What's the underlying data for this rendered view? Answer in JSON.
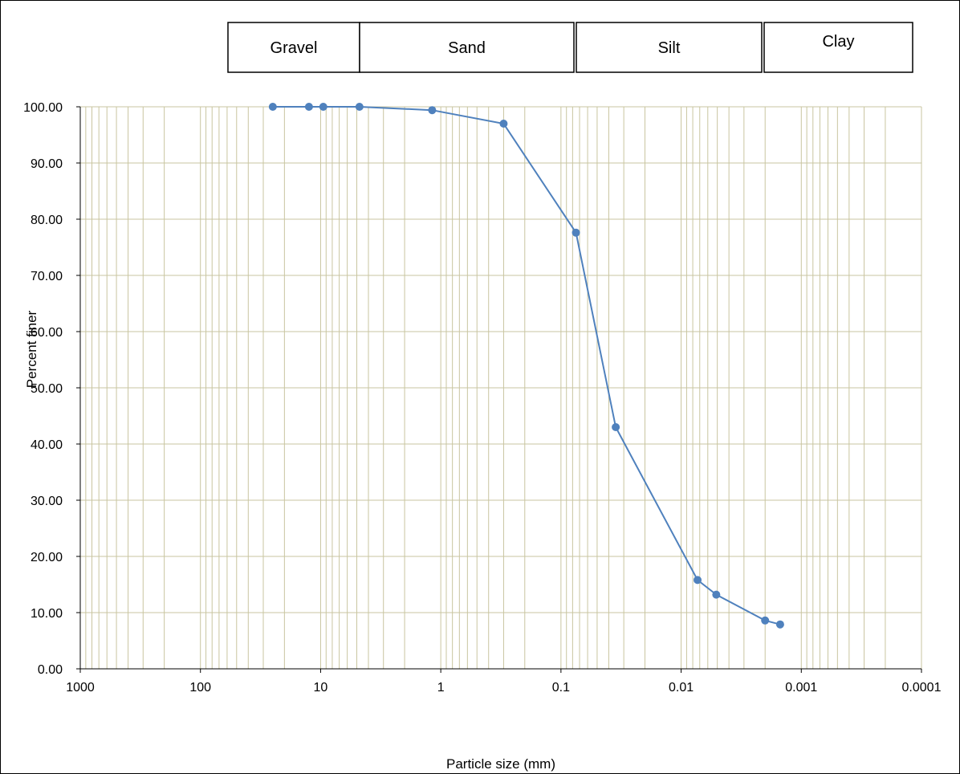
{
  "chart_data": {
    "type": "line",
    "title": "",
    "xlabel": "Particle size (mm)",
    "ylabel": "Percent finer",
    "x_scale": "log",
    "x_reversed": true,
    "xlim": [
      1000,
      0.0001
    ],
    "ylim": [
      0,
      100
    ],
    "x_ticks": [
      "1000",
      "100",
      "10",
      "1",
      "0.1",
      "0.01",
      "0.001",
      "0.0001"
    ],
    "y_ticks": [
      "0.00",
      "10.00",
      "20.00",
      "30.00",
      "40.00",
      "50.00",
      "60.00",
      "70.00",
      "80.00",
      "90.00",
      "100.00"
    ],
    "grid": true,
    "grid_color": "#c9c5a0",
    "series_color": "#4f81bd",
    "soil_classes": [
      "Gravel",
      "Sand",
      "Silt",
      "Clay"
    ],
    "series": [
      {
        "x": [
          25,
          12.5,
          9.5,
          4.75,
          1.18,
          0.3,
          0.075,
          0.035,
          0.0073,
          0.0051,
          0.002,
          0.0015
        ],
        "y": [
          100,
          100,
          100,
          100,
          99.4,
          97,
          77.6,
          43,
          15.8,
          13.2,
          8.6,
          7.9
        ]
      }
    ]
  }
}
